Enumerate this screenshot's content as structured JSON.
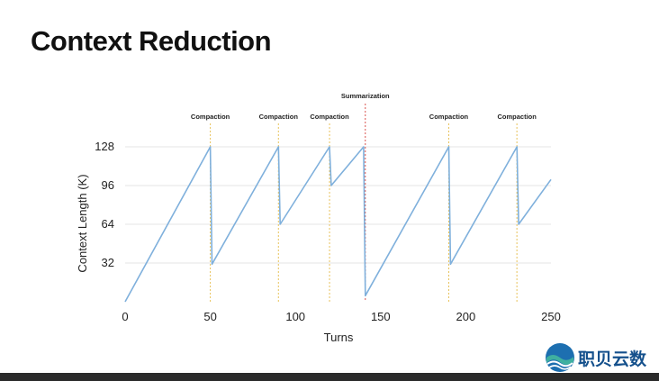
{
  "slide": {
    "title": "Context Reduction"
  },
  "watermark": {
    "text": "职贝云数"
  },
  "colors": {
    "line": "#7fb0dc",
    "grid": "#e4e4e4",
    "compaction_marker": "#e8c25a",
    "summarization_marker": "#d9534f"
  },
  "chart_data": {
    "type": "line",
    "title": "Context Reduction",
    "xlabel": "Turns",
    "ylabel": "Context Length (K)",
    "xlim": [
      0,
      250
    ],
    "ylim": [
      0,
      140
    ],
    "x_ticks": [
      0,
      50,
      100,
      150,
      200,
      250
    ],
    "y_ticks": [
      32,
      64,
      96,
      128
    ],
    "grid": true,
    "series": [
      {
        "name": "Context Length",
        "x": [
          0,
          50,
          51,
          90,
          91,
          120,
          121,
          140,
          141,
          190,
          191,
          230,
          231,
          250
        ],
        "y": [
          0,
          128,
          31,
          128,
          64,
          128,
          96,
          128,
          5,
          128,
          31,
          128,
          64,
          101
        ]
      }
    ],
    "annotations": [
      {
        "x": 50,
        "label": "Compaction",
        "kind": "compaction"
      },
      {
        "x": 90,
        "label": "Compaction",
        "kind": "compaction"
      },
      {
        "x": 120,
        "label": "Compaction",
        "kind": "compaction"
      },
      {
        "x": 141,
        "label": "Summarization",
        "kind": "summarization"
      },
      {
        "x": 190,
        "label": "Compaction",
        "kind": "compaction"
      },
      {
        "x": 230,
        "label": "Compaction",
        "kind": "compaction"
      }
    ]
  }
}
